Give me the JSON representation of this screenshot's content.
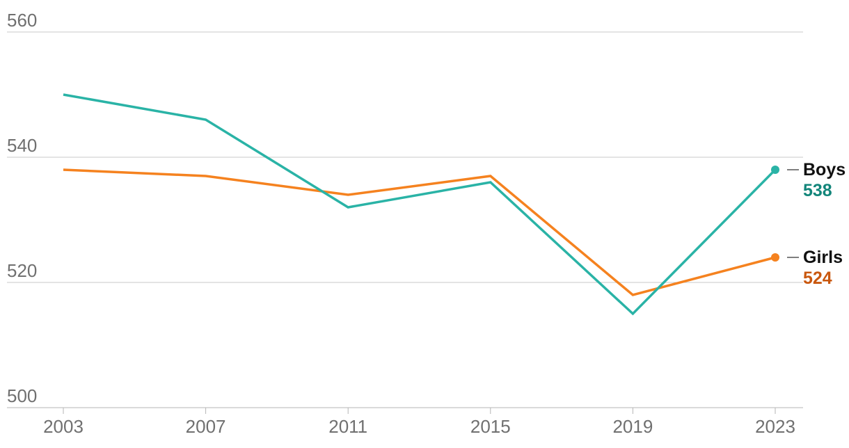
{
  "chart_data": {
    "type": "line",
    "title": "",
    "xlabel": "",
    "ylabel": "",
    "x": [
      2003,
      2007,
      2011,
      2015,
      2019,
      2023
    ],
    "x_tick_labels": [
      "2003",
      "2007",
      "2011",
      "2015",
      "2019",
      "2023"
    ],
    "ylim": [
      500,
      560
    ],
    "y_ticks": [
      500,
      520,
      540,
      560
    ],
    "y_tick_labels": [
      "500",
      "520",
      "540",
      "560"
    ],
    "grid": true,
    "series": [
      {
        "name": "Boys",
        "values": [
          550,
          546,
          532,
          536,
          515,
          538
        ],
        "end_label": "538",
        "color": "#2ab3a6",
        "value_color": "#12857a"
      },
      {
        "name": "Girls",
        "values": [
          538,
          537,
          534,
          537,
          518,
          524
        ],
        "end_label": "524",
        "color": "#f5821f",
        "value_color": "#c9580f"
      }
    ]
  }
}
